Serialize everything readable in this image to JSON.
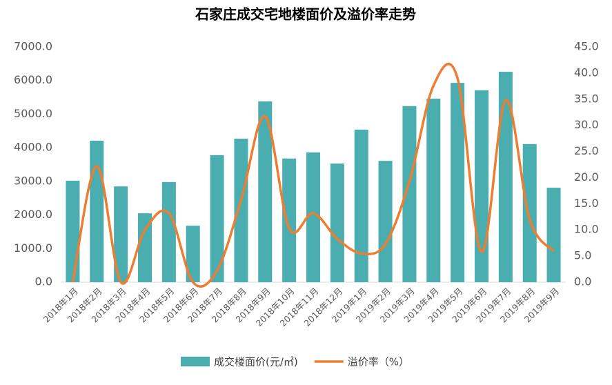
{
  "chart_data": {
    "type": "bar-line",
    "title": "石家庄成交宅地楼面价及溢价率走势",
    "categories": [
      "2018年1月",
      "2018年2月",
      "2018年3月",
      "2018年4月",
      "2018年5月",
      "2018年6月",
      "2018年7月",
      "2018年8月",
      "2018年9月",
      "2018年10月",
      "2018年11月",
      "2018年12月",
      "2019年1月",
      "2019年2月",
      "2019年3月",
      "2019年4月",
      "2019年5月",
      "2019年6月",
      "2019年7月",
      "2019年8月",
      "2019年9月"
    ],
    "series": [
      {
        "name": "成交楼面价(元/㎡)",
        "type": "bar",
        "color": "#4aadb0",
        "values": [
          3020,
          4210,
          2850,
          2050,
          2980,
          1680,
          3780,
          4270,
          5380,
          3680,
          3860,
          3530,
          4540,
          3610,
          5240,
          5460,
          5930,
          5710,
          6260,
          4110,
          2810
        ]
      },
      {
        "name": "溢价率（%）",
        "type": "line",
        "axis": "y2",
        "color": "#ed7d31",
        "values": [
          0,
          22.2,
          0,
          10.0,
          13.2,
          0,
          2.2,
          15.7,
          31.7,
          10.3,
          13.2,
          8.3,
          5.5,
          7.3,
          19.3,
          37.6,
          39.0,
          5.8,
          34.8,
          12.0,
          5.9
        ]
      }
    ],
    "ylim": [
      0,
      7000
    ],
    "yticks": [
      {
        "value": 0,
        "label": "0.0"
      },
      {
        "value": 1000,
        "label": "1000.0"
      },
      {
        "value": 2000,
        "label": "2000.0"
      },
      {
        "value": 3000,
        "label": "3000.0"
      },
      {
        "value": 4000,
        "label": "4000.0"
      },
      {
        "value": 5000,
        "label": "5000.0"
      },
      {
        "value": 6000,
        "label": "6000.0"
      },
      {
        "value": 7000,
        "label": "7000.0"
      }
    ],
    "y2lim": [
      0,
      45
    ],
    "y2ticks": [
      {
        "value": 0,
        "label": "0.0"
      },
      {
        "value": 5,
        "label": "5.0"
      },
      {
        "value": 10,
        "label": "10.0"
      },
      {
        "value": 15,
        "label": "15.0"
      },
      {
        "value": 20,
        "label": "20.0"
      },
      {
        "value": 25,
        "label": "25.0"
      },
      {
        "value": 30,
        "label": "30.0"
      },
      {
        "value": 35,
        "label": "35.0"
      },
      {
        "value": 40,
        "label": "40.0"
      },
      {
        "value": 45,
        "label": "45.0"
      }
    ],
    "grid": false,
    "legend": "bottom"
  }
}
